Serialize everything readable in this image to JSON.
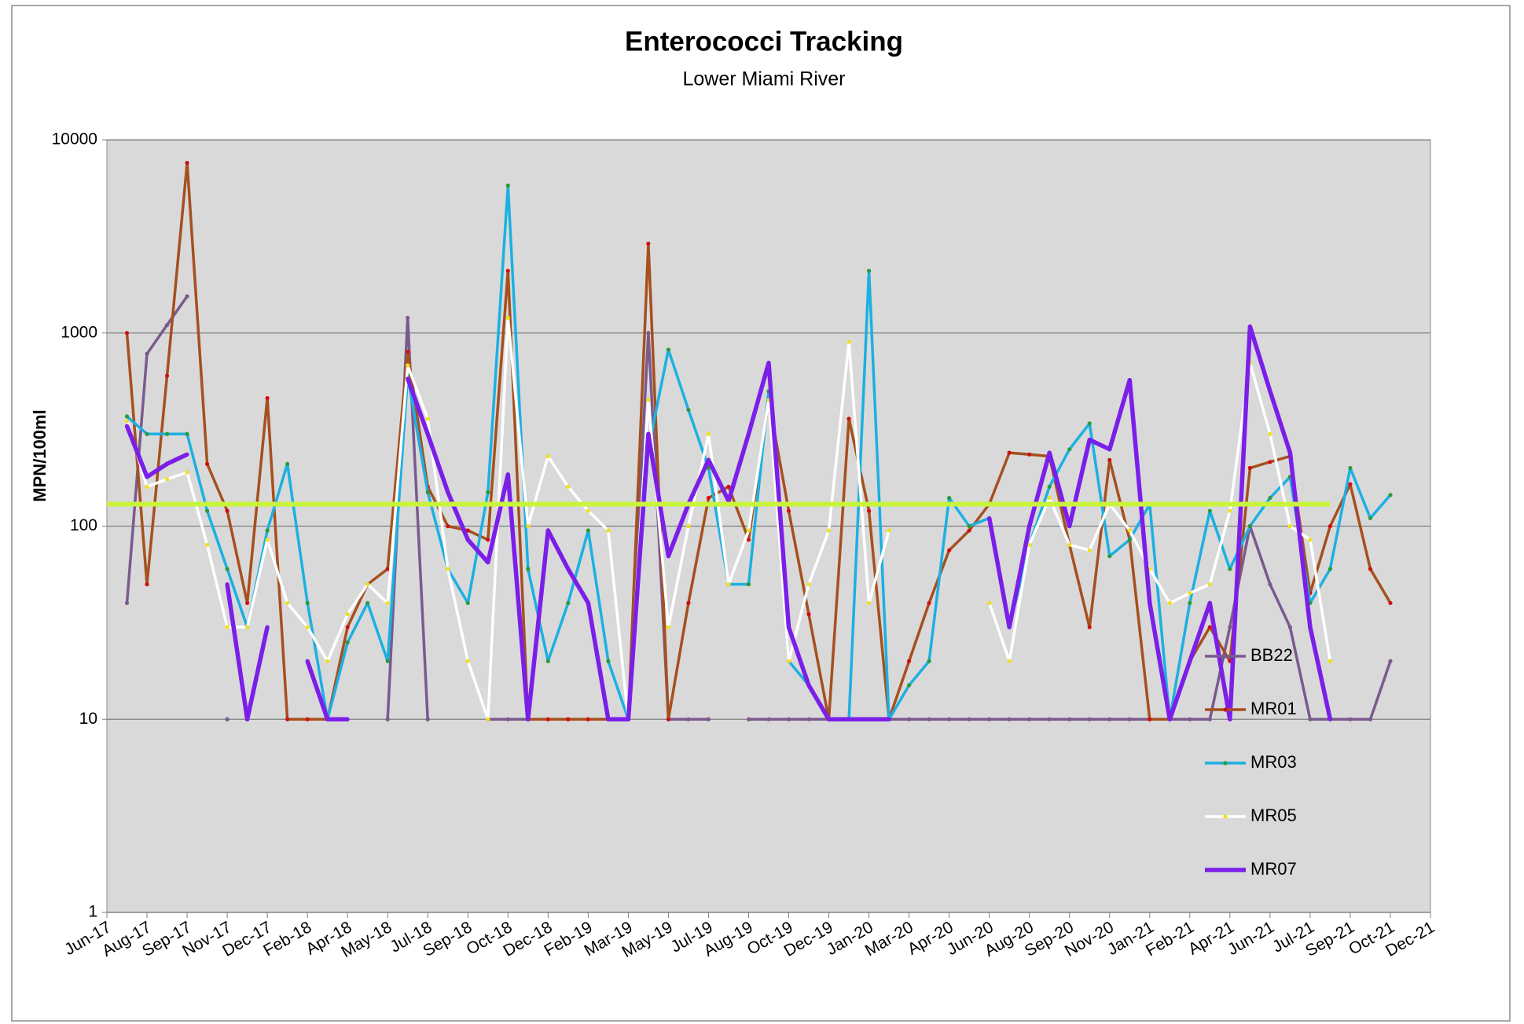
{
  "chart_data": {
    "type": "line",
    "title": "Enterococci Tracking",
    "subtitle": "Lower Miami River",
    "y_label": "MPN/100ml",
    "log_scale": true,
    "grid": true,
    "legend_position": "bottom-right",
    "ylim": [
      1,
      10000
    ],
    "yticks": [
      1,
      10,
      100,
      1000,
      10000
    ],
    "x_labels": [
      "Jun-17",
      "Aug-17",
      "Sep-17",
      "Nov-17",
      "Dec-17",
      "Feb-18",
      "Apr-18",
      "May-18",
      "Jul-18",
      "Sep-18",
      "Oct-18",
      "Dec-18",
      "Feb-19",
      "Mar-19",
      "May-19",
      "Jul-19",
      "Aug-19",
      "Oct-19",
      "Dec-19",
      "Jan-20",
      "Mar-20",
      "Apr-20",
      "Jun-20",
      "Aug-20",
      "Sep-20",
      "Nov-20",
      "Jan-21",
      "Feb-21",
      "Apr-21",
      "Jun-21",
      "Jul-21",
      "Sep-21",
      "Oct-21",
      "Dec-21"
    ],
    "threshold": {
      "value": 130,
      "color": "#c8f53c"
    },
    "series": [
      {
        "name": "BB22",
        "color": "#7a5a8e",
        "marker_color": "#7a5a8e",
        "width": 3.5,
        "values": [
          null,
          40,
          780,
          1100,
          1550,
          null,
          10,
          null,
          null,
          null,
          null,
          null,
          null,
          null,
          10,
          1200,
          10,
          null,
          null,
          10,
          10,
          10,
          10,
          10,
          10,
          10,
          10,
          1000,
          10,
          10,
          10,
          null,
          10,
          10,
          10,
          10,
          10,
          10,
          10,
          10,
          10,
          10,
          10,
          10,
          10,
          10,
          10,
          10,
          10,
          10,
          10,
          10,
          10,
          10,
          10,
          10,
          30,
          100,
          50,
          30,
          10,
          10,
          10,
          10,
          20,
          null,
          null
        ]
      },
      {
        "name": "MR01",
        "color": "#a5501e",
        "marker_color": "#d01010",
        "width": 3.5,
        "values": [
          null,
          1000,
          50,
          600,
          7600,
          210,
          120,
          40,
          460,
          10,
          10,
          10,
          30,
          50,
          60,
          800,
          160,
          100,
          95,
          85,
          2100,
          10,
          10,
          10,
          10,
          10,
          10,
          2900,
          10,
          40,
          140,
          160,
          85,
          450,
          120,
          35,
          10,
          360,
          120,
          10,
          20,
          40,
          75,
          95,
          130,
          240,
          235,
          230,
          80,
          30,
          220,
          85,
          10,
          10,
          20,
          30,
          20,
          200,
          215,
          230,
          45,
          100,
          165,
          60,
          40,
          null,
          null
        ]
      },
      {
        "name": "MR03",
        "color": "#1cb0e2",
        "marker_color": "#2a9a3a",
        "width": 3.5,
        "values": [
          null,
          370,
          300,
          300,
          300,
          120,
          60,
          30,
          95,
          210,
          40,
          10,
          25,
          40,
          20,
          600,
          150,
          60,
          40,
          150,
          5800,
          60,
          20,
          40,
          95,
          20,
          10,
          250,
          820,
          400,
          200,
          50,
          50,
          500,
          20,
          15,
          10,
          10,
          2100,
          10,
          15,
          20,
          140,
          100,
          110,
          30,
          80,
          160,
          250,
          340,
          70,
          85,
          130,
          10,
          40,
          120,
          60,
          100,
          140,
          180,
          40,
          60,
          200,
          110,
          145,
          null,
          null
        ]
      },
      {
        "name": "MR05",
        "color": "#ffffff",
        "marker_color": "#f0e020",
        "width": 3.5,
        "values": [
          null,
          350,
          160,
          175,
          190,
          80,
          30,
          30,
          85,
          40,
          30,
          20,
          35,
          50,
          40,
          680,
          360,
          60,
          20,
          10,
          1200,
          100,
          230,
          160,
          120,
          95,
          10,
          450,
          30,
          100,
          300,
          50,
          95,
          450,
          20,
          50,
          95,
          900,
          40,
          95,
          null,
          null,
          null,
          null,
          40,
          20,
          80,
          140,
          80,
          75,
          130,
          95,
          60,
          40,
          45,
          50,
          120,
          700,
          300,
          100,
          85,
          20,
          null,
          null,
          null,
          null,
          null
        ]
      },
      {
        "name": "MR07",
        "color": "#7b1fe8",
        "marker_color": "#7b1fe8",
        "width": 5.5,
        "values": [
          null,
          330,
          180,
          210,
          235,
          null,
          50,
          10,
          30,
          null,
          20,
          10,
          10,
          null,
          null,
          580,
          300,
          150,
          85,
          65,
          185,
          10,
          95,
          60,
          40,
          10,
          10,
          300,
          70,
          130,
          220,
          135,
          300,
          700,
          30,
          15,
          10,
          10,
          10,
          10,
          null,
          null,
          null,
          null,
          110,
          30,
          100,
          240,
          100,
          280,
          250,
          570,
          40,
          10,
          20,
          40,
          10,
          1080,
          500,
          240,
          30,
          10,
          null,
          null,
          null,
          null,
          null
        ]
      }
    ]
  }
}
